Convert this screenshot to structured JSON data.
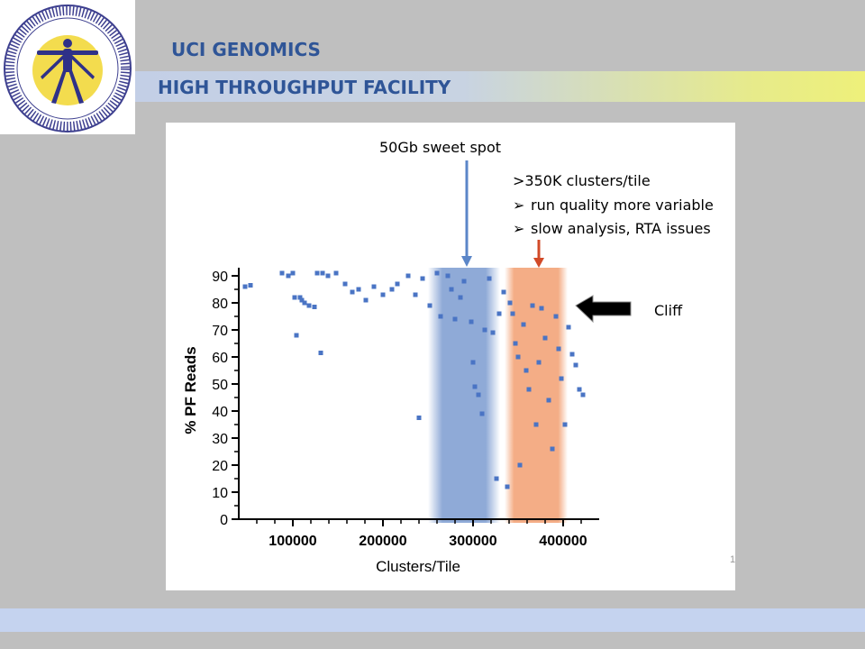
{
  "header": {
    "org": "UCI GENOMICS",
    "facility": "HIGH THROUGHPUT FACILITY",
    "logo_icon": "vitruvian-man-logo-icon"
  },
  "annotations": {
    "sweet_spot": "50Gb sweet spot",
    "clusters_note": ">350K clusters/tile",
    "bullet1": "run quality more variable",
    "bullet2": "slow analysis, RTA issues",
    "bullet_symbol": "➢",
    "cliff": "Cliff"
  },
  "slide_number": "1",
  "colors": {
    "title": "#2f5597",
    "points": "#4a74c4",
    "blue_band": "#8faad7",
    "orange_band": "#f3a478",
    "blue_arrow": "#5b86c8",
    "red_arrow": "#d24a28"
  },
  "chart_data": {
    "type": "scatter",
    "xlabel": "Clusters/Tile",
    "ylabel": "% PF Reads",
    "xlim": [
      40000,
      440000
    ],
    "ylim": [
      0,
      93
    ],
    "xticks": [
      "100000",
      "200000",
      "300000",
      "400000"
    ],
    "yticks": [
      "0",
      "10",
      "20",
      "30",
      "40",
      "50",
      "60",
      "70",
      "80",
      "90"
    ],
    "regions": [
      {
        "label": "50Gb sweet spot",
        "x_range": [
          250000,
          330000
        ]
      },
      {
        "label": ">350K clusters/tile",
        "x_range": [
          335000,
          405000
        ]
      }
    ],
    "series": [
      {
        "points": [
          [
            47000,
            86
          ],
          [
            53000,
            86.5
          ],
          [
            88000,
            91
          ],
          [
            95000,
            90
          ],
          [
            100000,
            91
          ],
          [
            102000,
            82
          ],
          [
            108000,
            82
          ],
          [
            110000,
            81
          ],
          [
            113000,
            80
          ],
          [
            118000,
            79
          ],
          [
            124000,
            78.5
          ],
          [
            127000,
            91
          ],
          [
            133000,
            91
          ],
          [
            139000,
            90
          ],
          [
            104000,
            68
          ],
          [
            131000,
            61.5
          ],
          [
            148000,
            91
          ],
          [
            158000,
            87
          ],
          [
            166000,
            84
          ],
          [
            173000,
            85
          ],
          [
            181000,
            81
          ],
          [
            190000,
            86
          ],
          [
            200000,
            83
          ],
          [
            210000,
            85
          ],
          [
            216000,
            87
          ],
          [
            228000,
            90
          ],
          [
            236000,
            83
          ],
          [
            240000,
            37.5
          ],
          [
            244000,
            89
          ],
          [
            252000,
            79
          ],
          [
            260000,
            91
          ],
          [
            264000,
            75
          ],
          [
            272000,
            90
          ],
          [
            276000,
            85
          ],
          [
            280000,
            74
          ],
          [
            286000,
            82
          ],
          [
            290000,
            88
          ],
          [
            298000,
            73
          ],
          [
            300000,
            58
          ],
          [
            302000,
            49
          ],
          [
            306000,
            46
          ],
          [
            310000,
            39
          ],
          [
            313000,
            70
          ],
          [
            318000,
            89
          ],
          [
            322000,
            69
          ],
          [
            326000,
            15
          ],
          [
            329000,
            76
          ],
          [
            334000,
            84
          ],
          [
            338000,
            12
          ],
          [
            341000,
            80
          ],
          [
            344000,
            76
          ],
          [
            347000,
            65
          ],
          [
            350000,
            60
          ],
          [
            352000,
            20
          ],
          [
            356000,
            72
          ],
          [
            359000,
            55
          ],
          [
            362000,
            48
          ],
          [
            366000,
            79
          ],
          [
            370000,
            35
          ],
          [
            373000,
            58
          ],
          [
            376000,
            78
          ],
          [
            380000,
            67
          ],
          [
            384000,
            44
          ],
          [
            388000,
            26
          ],
          [
            392000,
            75
          ],
          [
            395000,
            63
          ],
          [
            398000,
            52
          ],
          [
            402000,
            35
          ],
          [
            406000,
            71
          ],
          [
            410000,
            61
          ],
          [
            414000,
            57
          ],
          [
            418000,
            48
          ],
          [
            422000,
            46
          ]
        ]
      }
    ]
  }
}
